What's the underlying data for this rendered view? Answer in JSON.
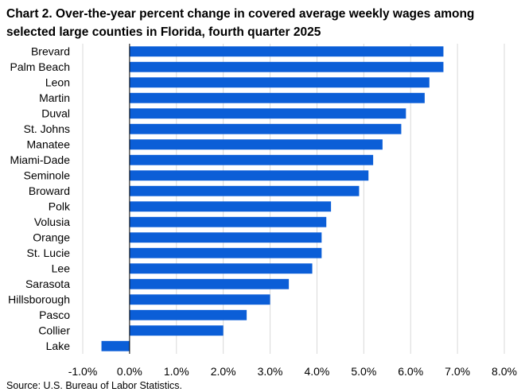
{
  "chart_data": {
    "type": "bar",
    "orientation": "horizontal",
    "title": "Chart 2. Over-the-year percent change in covered average weekly wages among selected large counties in Florida, fourth quarter 2025",
    "categories": [
      "Brevard",
      "Palm Beach",
      "Leon",
      "Martin",
      "Duval",
      "St. Johns",
      "Manatee",
      "Miami-Dade",
      "Seminole",
      "Broward",
      "Polk",
      "Volusia",
      "Orange",
      "St. Lucie",
      "Lee",
      "Sarasota",
      "Hillsborough",
      "Pasco",
      "Collier",
      "Lake"
    ],
    "values": [
      6.7,
      6.7,
      6.4,
      6.3,
      5.9,
      5.8,
      5.4,
      5.2,
      5.1,
      4.9,
      4.3,
      4.2,
      4.1,
      4.1,
      3.9,
      3.4,
      3.0,
      2.5,
      2.0,
      -0.6
    ],
    "xlim": [
      -1.0,
      8.0
    ],
    "xticks": [
      -1.0,
      0.0,
      1.0,
      2.0,
      3.0,
      4.0,
      5.0,
      6.0,
      7.0,
      8.0
    ],
    "xtick_labels": [
      "-1.0%",
      "0.0%",
      "1.0%",
      "2.0%",
      "3.0%",
      "4.0%",
      "5.0%",
      "6.0%",
      "7.0%",
      "8.0%"
    ],
    "xlabel": "",
    "ylabel": "",
    "grid": "vertical",
    "legend": "none",
    "bar_color": "#0b5ed7",
    "grid_color": "#d9d9d9",
    "source": "Source: U.S. Bureau of Labor Statistics."
  }
}
